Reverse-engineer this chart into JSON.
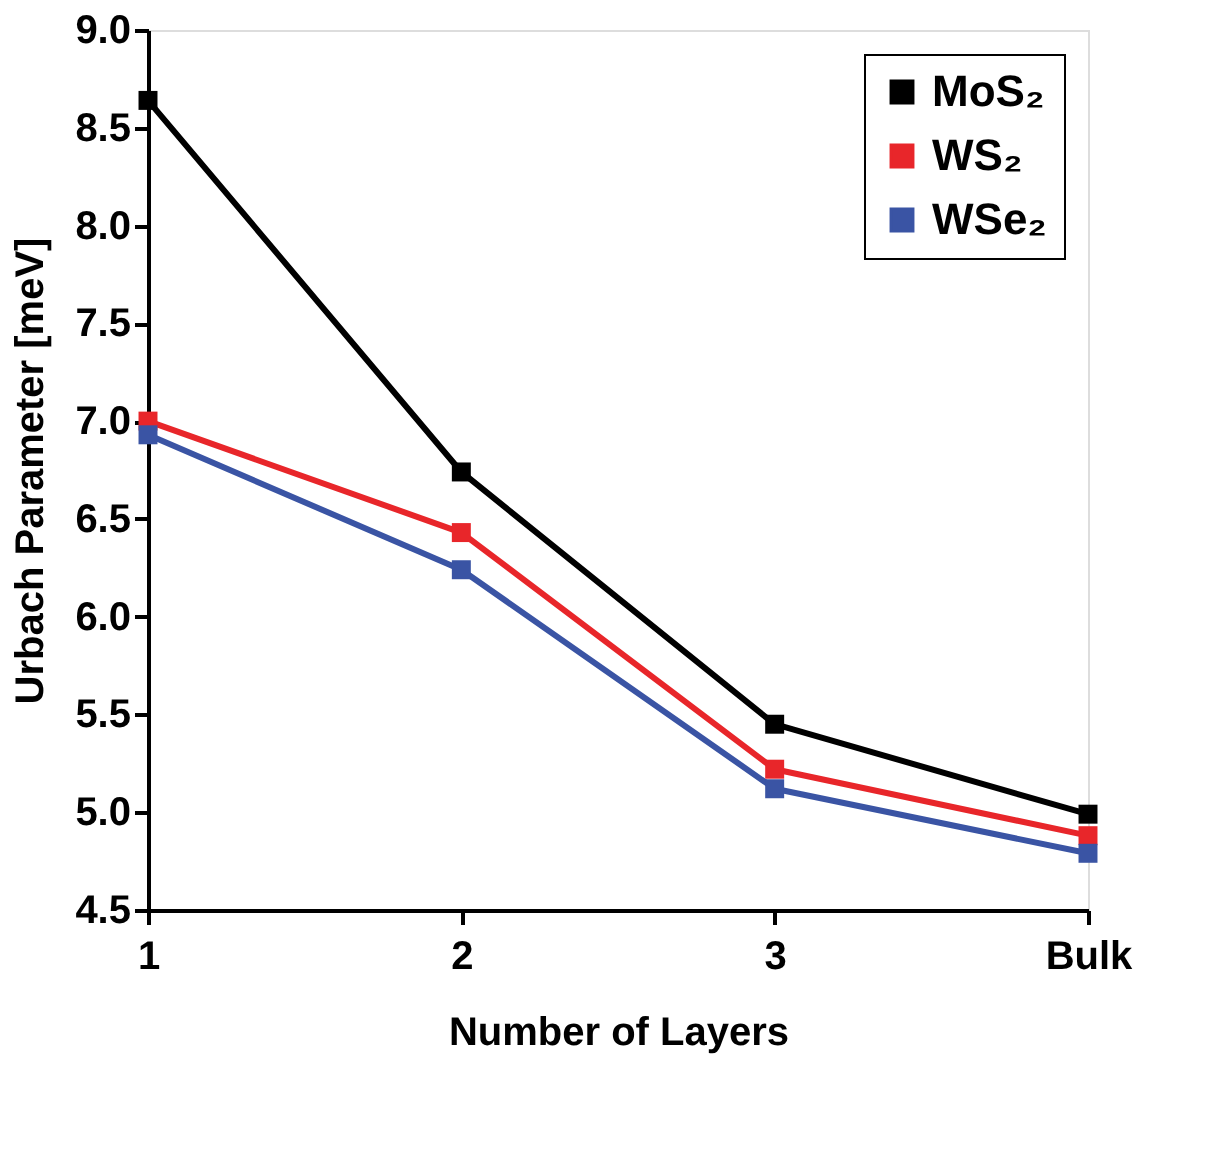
{
  "chart_data": {
    "type": "line",
    "xlabel": "Number of Layers",
    "ylabel": "Urbach Parameter [meV]",
    "categories": [
      "1",
      "2",
      "3",
      "Bulk"
    ],
    "series": [
      {
        "name": "MoS₂",
        "color": "#000000",
        "values": [
          8.64,
          6.74,
          5.45,
          4.99
        ]
      },
      {
        "name": "WS₂",
        "color": "#e8262a",
        "values": [
          7.0,
          6.43,
          5.22,
          4.88
        ]
      },
      {
        "name": "WSe₂",
        "color": "#3a54a4",
        "values": [
          6.93,
          6.24,
          5.12,
          4.79
        ]
      }
    ],
    "ylim": [
      4.5,
      9.0
    ],
    "yticks": [
      4.5,
      {
        "value": 5,
        "label": "5.0"
      },
      5.5,
      {
        "value": 6,
        "label": "6.0"
      },
      6.5,
      {
        "value": 7,
        "label": "7.0"
      },
      7.5,
      {
        "value": 8,
        "label": "8.0"
      },
      8.5,
      {
        "value": 9,
        "label": "9.0"
      }
    ],
    "grid": false,
    "legend": "top right",
    "marker": "square",
    "line_style": "solid"
  }
}
